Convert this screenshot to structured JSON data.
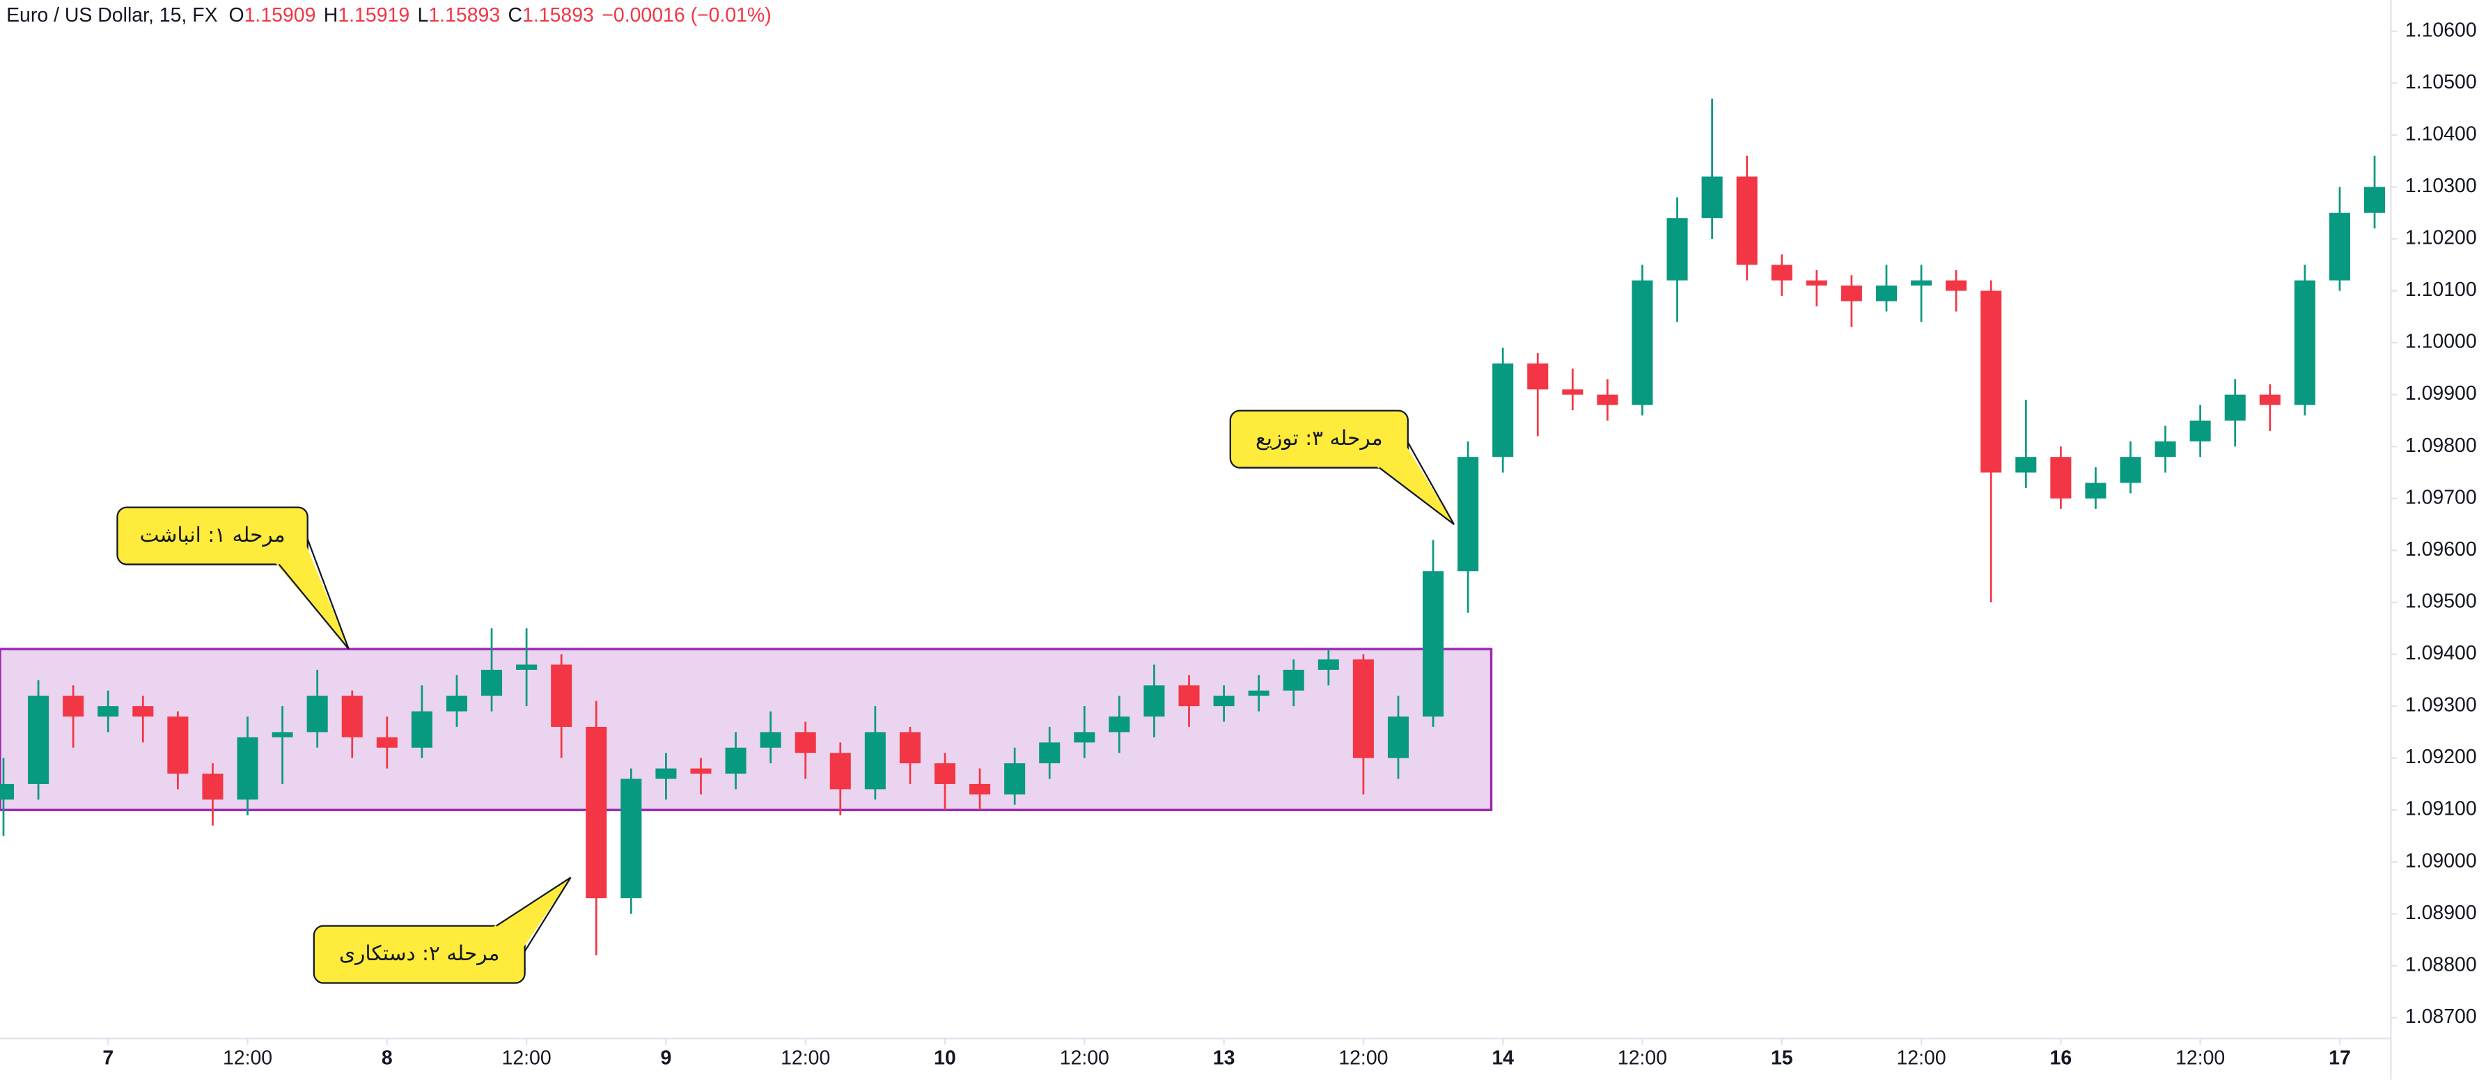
{
  "chart_data": {
    "type": "candlestick",
    "title": "Euro / US Dollar, 15, FX",
    "ohlc": [
      {
        "label": "O",
        "value": 1.15909
      },
      {
        "label": "H",
        "value": 1.15919
      },
      {
        "label": "L",
        "value": 1.15893
      },
      {
        "label": "C",
        "value": 1.15893
      }
    ],
    "change": "−0.00016 (−0.01%)",
    "up_color": "#089981",
    "down_color": "#f23645",
    "x": [
      -9,
      -6,
      -3,
      0,
      3,
      6,
      9,
      12,
      15,
      18,
      21,
      24,
      27,
      30,
      33,
      36,
      39,
      42,
      45,
      48,
      51,
      54,
      57,
      60,
      63,
      66,
      69,
      72,
      75,
      78,
      81,
      84,
      87,
      90,
      93,
      96,
      99,
      102,
      105,
      108,
      111,
      114,
      117,
      120,
      123,
      126,
      129,
      132,
      135,
      138,
      141,
      144,
      147,
      150,
      153,
      156,
      159,
      162,
      165,
      168,
      171,
      174,
      177,
      180,
      183,
      186,
      189,
      192,
      195
    ],
    "open": [
      1.0912,
      1.0915,
      1.0932,
      1.0928,
      1.093,
      1.0928,
      1.0917,
      1.0912,
      1.0924,
      1.0925,
      1.0932,
      1.0924,
      1.0922,
      1.0929,
      1.0932,
      1.0937,
      1.0938,
      1.0926,
      1.0893,
      1.0916,
      1.0918,
      1.0917,
      1.0922,
      1.0925,
      1.0921,
      1.0914,
      1.0925,
      1.0919,
      1.0915,
      1.0913,
      1.0919,
      1.0923,
      1.0925,
      1.0928,
      1.0934,
      1.093,
      1.0932,
      1.0933,
      1.0937,
      1.0939,
      1.092,
      1.0928,
      1.0956,
      1.0978,
      1.0996,
      1.0991,
      1.099,
      1.0988,
      1.1012,
      1.1024,
      1.1032,
      1.1015,
      1.1012,
      1.1011,
      1.1008,
      1.1011,
      1.1012,
      1.101,
      1.0975,
      1.0978,
      1.097,
      1.0973,
      1.0978,
      1.0981,
      1.0985,
      1.099,
      1.0988,
      1.1012,
      1.1025
    ],
    "high": [
      1.092,
      1.0935,
      1.0934,
      1.0933,
      1.0932,
      1.0929,
      1.0919,
      1.0928,
      1.093,
      1.0937,
      1.0933,
      1.0928,
      1.0934,
      1.0936,
      1.0945,
      1.0945,
      1.094,
      1.0931,
      1.0918,
      1.0921,
      1.092,
      1.0925,
      1.0929,
      1.0927,
      1.0923,
      1.093,
      1.0926,
      1.0921,
      1.0918,
      1.0922,
      1.0926,
      1.093,
      1.0932,
      1.0938,
      1.0936,
      1.0934,
      1.0936,
      1.0939,
      1.0941,
      1.094,
      1.0932,
      1.0962,
      1.0981,
      1.0999,
      1.0998,
      1.0995,
      1.0993,
      1.1015,
      1.1028,
      1.1047,
      1.1036,
      1.1017,
      1.1014,
      1.1013,
      1.1015,
      1.1015,
      1.1014,
      1.1012,
      1.0989,
      1.098,
      1.0976,
      1.0981,
      1.0984,
      1.0988,
      1.0993,
      1.0992,
      1.1015,
      1.103,
      1.1036
    ],
    "low": [
      1.0905,
      1.0912,
      1.0922,
      1.0925,
      1.0923,
      1.0914,
      1.0907,
      1.0909,
      1.0915,
      1.0922,
      1.092,
      1.0918,
      1.092,
      1.0926,
      1.0929,
      1.093,
      1.092,
      1.0882,
      1.089,
      1.0912,
      1.0913,
      1.0914,
      1.0919,
      1.0916,
      1.0909,
      1.0912,
      1.0915,
      1.091,
      1.091,
      1.0911,
      1.0916,
      1.092,
      1.0921,
      1.0924,
      1.0926,
      1.0927,
      1.0929,
      1.093,
      1.0934,
      1.0913,
      1.0916,
      1.0926,
      1.0948,
      1.0975,
      1.0982,
      1.0987,
      1.0985,
      1.0986,
      1.1004,
      1.102,
      1.1012,
      1.1009,
      1.1007,
      1.1003,
      1.1006,
      1.1004,
      1.1006,
      1.095,
      1.0972,
      1.0968,
      1.0968,
      1.0971,
      1.0975,
      1.0978,
      1.098,
      1.0983,
      1.0986,
      1.101,
      1.1022
    ],
    "close": [
      1.0915,
      1.0932,
      1.0928,
      1.093,
      1.0928,
      1.0917,
      1.0912,
      1.0924,
      1.0925,
      1.0932,
      1.0924,
      1.0922,
      1.0929,
      1.0932,
      1.0937,
      1.0938,
      1.0926,
      1.0893,
      1.0916,
      1.0918,
      1.0917,
      1.0922,
      1.0925,
      1.0921,
      1.0914,
      1.0925,
      1.0919,
      1.0915,
      1.0913,
      1.0919,
      1.0923,
      1.0925,
      1.0928,
      1.0934,
      1.093,
      1.0932,
      1.0933,
      1.0937,
      1.0939,
      1.092,
      1.0928,
      1.0956,
      1.0978,
      1.0996,
      1.0991,
      1.099,
      1.0988,
      1.1012,
      1.1024,
      1.1032,
      1.1015,
      1.1012,
      1.1011,
      1.1008,
      1.1011,
      1.1012,
      1.101,
      1.0975,
      1.0978,
      1.097,
      1.0973,
      1.0978,
      1.0981,
      1.0985,
      1.099,
      1.0988,
      1.1012,
      1.1025,
      1.103
    ],
    "xlim": [
      -9.3,
      196.4
    ],
    "ylim": [
      1.0866,
      1.1066
    ],
    "yticks": [
      {
        "value": 1.087,
        "label": "1.08700"
      },
      {
        "value": 1.088,
        "label": "1.08800"
      },
      {
        "value": 1.089,
        "label": "1.08900"
      },
      {
        "value": 1.09,
        "label": "1.09000"
      },
      {
        "value": 1.091,
        "label": "1.09100"
      },
      {
        "value": 1.092,
        "label": "1.09200"
      },
      {
        "value": 1.093,
        "label": "1.09300"
      },
      {
        "value": 1.094,
        "label": "1.09400"
      },
      {
        "value": 1.095,
        "label": "1.09500"
      },
      {
        "value": 1.096,
        "label": "1.09600"
      },
      {
        "value": 1.097,
        "label": "1.09700"
      },
      {
        "value": 1.098,
        "label": "1.09800"
      },
      {
        "value": 1.099,
        "label": "1.09900"
      },
      {
        "value": 1.1,
        "label": "1.10000"
      },
      {
        "value": 1.101,
        "label": "1.10100"
      },
      {
        "value": 1.102,
        "label": "1.10200"
      },
      {
        "value": 1.103,
        "label": "1.10300"
      },
      {
        "value": 1.104,
        "label": "1.10400"
      },
      {
        "value": 1.105,
        "label": "1.10500"
      },
      {
        "value": 1.106,
        "label": "1.10600"
      }
    ],
    "xticks": [
      {
        "value": 0,
        "label": "7"
      },
      {
        "value": 12,
        "label": "12:00"
      },
      {
        "value": 24,
        "label": "8"
      },
      {
        "value": 36,
        "label": "12:00"
      },
      {
        "value": 48,
        "label": "9"
      },
      {
        "value": 60,
        "label": "12:00"
      },
      {
        "value": 72,
        "label": "10"
      },
      {
        "value": 84,
        "label": "12:00"
      },
      {
        "value": 96,
        "label": "13"
      },
      {
        "value": 108,
        "label": "12:00"
      },
      {
        "value": 120,
        "label": "14"
      },
      {
        "value": 132,
        "label": "12:00"
      },
      {
        "value": 144,
        "label": "15"
      },
      {
        "value": 156,
        "label": "12:00"
      },
      {
        "value": 168,
        "label": "16"
      },
      {
        "value": 180,
        "label": "12:00"
      },
      {
        "value": 192,
        "label": "17"
      }
    ],
    "zone": {
      "xlim": [
        -9.3,
        119
      ],
      "ylim": [
        1.091,
        1.0941
      ],
      "color": "#9c27b0"
    },
    "annotations": [
      {
        "text": "مرحله ۱: انباشت",
        "x": 20.7,
        "y": 1.0941
      },
      {
        "text": "مرحله ۲: دستکاری",
        "x": 39.8,
        "y": 1.0897
      },
      {
        "text": "مرحله ۳: توزیع",
        "x": 115.8,
        "y": 1.0965
      }
    ]
  }
}
